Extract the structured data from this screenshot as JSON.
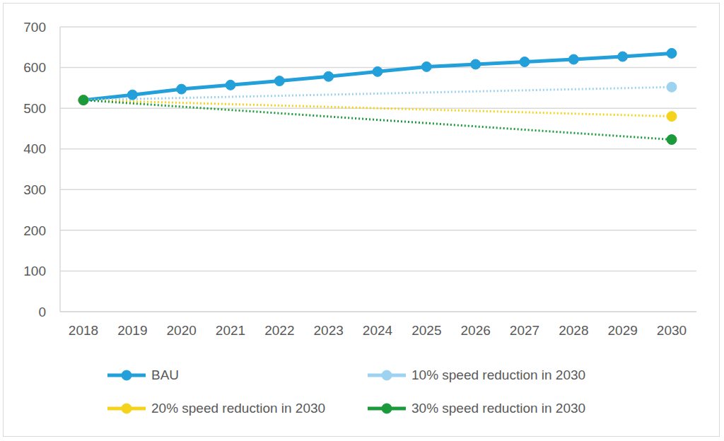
{
  "chart_data": {
    "type": "line",
    "categories": [
      "2018",
      "2019",
      "2020",
      "2021",
      "2022",
      "2023",
      "2024",
      "2025",
      "2026",
      "2027",
      "2028",
      "2029",
      "2030"
    ],
    "series": [
      {
        "name": "BAU",
        "color": "#23a0da",
        "marker": "circle",
        "line_style": "solid",
        "values": [
          520,
          533,
          547,
          557,
          567,
          578,
          590,
          602,
          608,
          614,
          620,
          627,
          635
        ]
      },
      {
        "name": "10% speed reduction in 2030",
        "color": "#9dd3f0",
        "marker": "circle",
        "line_style": "dotted",
        "values": [
          520,
          null,
          null,
          null,
          null,
          null,
          null,
          null,
          null,
          null,
          null,
          null,
          552
        ]
      },
      {
        "name": "20% speed reduction in 2030",
        "color": "#f5d31c",
        "marker": "circle",
        "line_style": "dotted",
        "values": [
          520,
          null,
          null,
          null,
          null,
          null,
          null,
          null,
          null,
          null,
          null,
          null,
          480
        ]
      },
      {
        "name": "30% speed reduction in 2030",
        "color": "#1a9a3a",
        "marker": "circle",
        "line_style": "dotted",
        "values": [
          520,
          null,
          null,
          null,
          null,
          null,
          null,
          null,
          null,
          null,
          null,
          null,
          423
        ]
      }
    ],
    "ylim": [
      0,
      700
    ],
    "yticks": [
      0,
      100,
      200,
      300,
      400,
      500,
      600,
      700
    ],
    "grid": true,
    "legend": "bottom"
  }
}
